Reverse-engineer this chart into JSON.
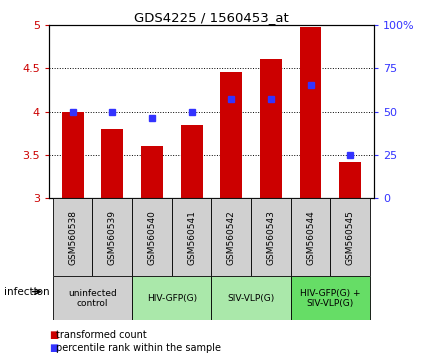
{
  "title": "GDS4225 / 1560453_at",
  "categories": [
    "GSM560538",
    "GSM560539",
    "GSM560540",
    "GSM560541",
    "GSM560542",
    "GSM560543",
    "GSM560544",
    "GSM560545"
  ],
  "bar_values": [
    4.0,
    3.8,
    3.6,
    3.84,
    4.45,
    4.6,
    4.97,
    3.42
  ],
  "blue_values": [
    50,
    50,
    46,
    50,
    57,
    57,
    65,
    25
  ],
  "ylim_left": [
    3,
    5
  ],
  "ylim_right": [
    0,
    100
  ],
  "yticks_left": [
    3,
    3.5,
    4,
    4.5,
    5
  ],
  "yticks_right": [
    0,
    25,
    50,
    75,
    100
  ],
  "bar_color": "#cc0000",
  "blue_color": "#3333ff",
  "bar_width": 0.55,
  "groups": [
    {
      "label": "uninfected\ncontrol",
      "start": 0,
      "end": 1,
      "color": "#d0d0d0"
    },
    {
      "label": "HIV-GFP(G)",
      "start": 2,
      "end": 3,
      "color": "#aae8aa"
    },
    {
      "label": "SIV-VLP(G)",
      "start": 4,
      "end": 5,
      "color": "#aae8aa"
    },
    {
      "label": "HIV-GFP(G) +\nSIV-VLP(G)",
      "start": 6,
      "end": 7,
      "color": "#66dd66"
    }
  ],
  "infection_label": "infection",
  "legend_red": "transformed count",
  "legend_blue": "percentile rank within the sample",
  "gsm_bg": "#d0d0d0",
  "plot_bg": "#ffffff"
}
